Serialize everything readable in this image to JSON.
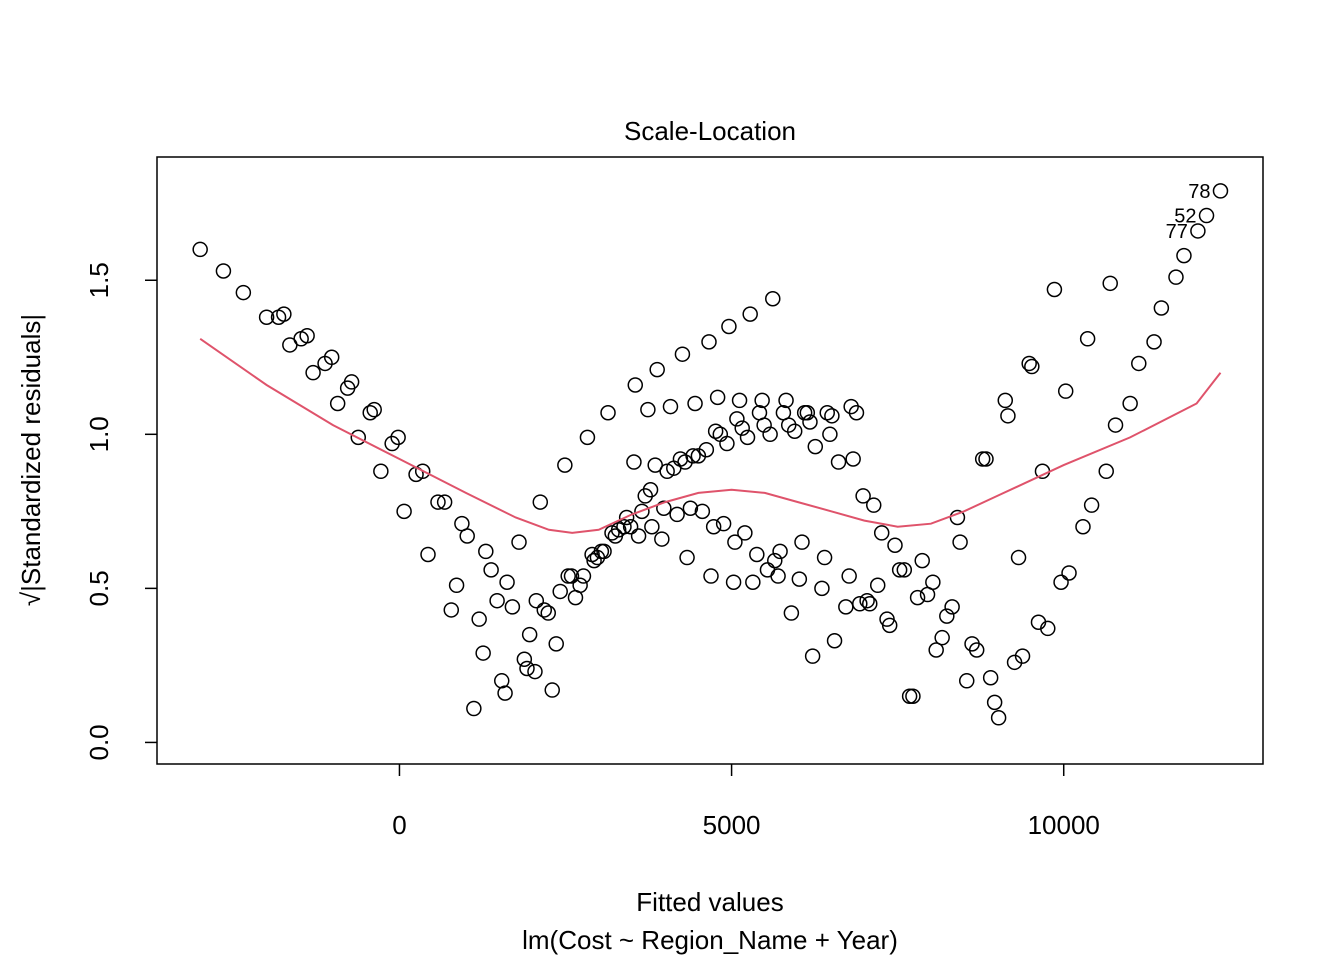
{
  "chart_data": {
    "type": "scatter",
    "title": "Scale-Location",
    "xlabel": "Fitted values",
    "subtitle": "lm(Cost ~ Region_Name + Year)",
    "ylabel": "√|Standardized residuals|",
    "xlim": [
      -3650,
      13000
    ],
    "ylim": [
      -0.07,
      1.9
    ],
    "x_ticks": [
      0,
      5000,
      10000
    ],
    "y_ticks": [
      0.0,
      0.5,
      1.0,
      1.5
    ],
    "x_tick_labels": [
      "0",
      "5000",
      "10000"
    ],
    "y_tick_labels": [
      "0.0",
      "0.5",
      "1.0",
      "1.5"
    ],
    "grid": false,
    "legend": "none",
    "point_color": "#000000",
    "smooth_color": "#DF536B",
    "points": [
      [
        -3000,
        1.6
      ],
      [
        -2650,
        1.53
      ],
      [
        -2350,
        1.46
      ],
      [
        -2000,
        1.38
      ],
      [
        -1820,
        1.38
      ],
      [
        -1740,
        1.39
      ],
      [
        -1650,
        1.29
      ],
      [
        -1480,
        1.31
      ],
      [
        -1390,
        1.32
      ],
      [
        -1300,
        1.2
      ],
      [
        -1120,
        1.23
      ],
      [
        -1020,
        1.25
      ],
      [
        -930,
        1.1
      ],
      [
        -780,
        1.15
      ],
      [
        -720,
        1.17
      ],
      [
        -620,
        0.99
      ],
      [
        -440,
        1.07
      ],
      [
        -380,
        1.08
      ],
      [
        -280,
        0.88
      ],
      [
        -110,
        0.97
      ],
      [
        -20,
        0.99
      ],
      [
        70,
        0.75
      ],
      [
        250,
        0.87
      ],
      [
        350,
        0.88
      ],
      [
        430,
        0.61
      ],
      [
        580,
        0.78
      ],
      [
        680,
        0.78
      ],
      [
        780,
        0.43
      ],
      [
        860,
        0.51
      ],
      [
        940,
        0.71
      ],
      [
        1020,
        0.67
      ],
      [
        1120,
        0.11
      ],
      [
        1200,
        0.4
      ],
      [
        1260,
        0.29
      ],
      [
        1300,
        0.62
      ],
      [
        1380,
        0.56
      ],
      [
        1470,
        0.46
      ],
      [
        1540,
        0.2
      ],
      [
        1590,
        0.16
      ],
      [
        1620,
        0.52
      ],
      [
        1700,
        0.44
      ],
      [
        1800,
        0.65
      ],
      [
        1880,
        0.27
      ],
      [
        1920,
        0.24
      ],
      [
        1960,
        0.35
      ],
      [
        2040,
        0.23
      ],
      [
        2060,
        0.46
      ],
      [
        2120,
        0.78
      ],
      [
        2180,
        0.43
      ],
      [
        2240,
        0.42
      ],
      [
        2300,
        0.17
      ],
      [
        2360,
        0.32
      ],
      [
        2420,
        0.49
      ],
      [
        2490,
        0.9
      ],
      [
        2540,
        0.54
      ],
      [
        2590,
        0.54
      ],
      [
        2650,
        0.47
      ],
      [
        2720,
        0.51
      ],
      [
        2770,
        0.54
      ],
      [
        2830,
        0.99
      ],
      [
        2900,
        0.61
      ],
      [
        2930,
        0.59
      ],
      [
        2980,
        0.6
      ],
      [
        3040,
        0.62
      ],
      [
        3080,
        0.62
      ],
      [
        3140,
        1.07
      ],
      [
        3200,
        0.68
      ],
      [
        3250,
        0.67
      ],
      [
        3300,
        0.69
      ],
      [
        3380,
        0.7
      ],
      [
        3420,
        0.73
      ],
      [
        3480,
        0.7
      ],
      [
        3530,
        0.91
      ],
      [
        3550,
        1.16
      ],
      [
        3600,
        0.67
      ],
      [
        3650,
        0.75
      ],
      [
        3700,
        0.8
      ],
      [
        3740,
        1.08
      ],
      [
        3780,
        0.82
      ],
      [
        3800,
        0.7
      ],
      [
        3850,
        0.9
      ],
      [
        3880,
        1.21
      ],
      [
        3950,
        0.66
      ],
      [
        3980,
        0.76
      ],
      [
        4030,
        0.88
      ],
      [
        4080,
        1.09
      ],
      [
        4130,
        0.89
      ],
      [
        4180,
        0.74
      ],
      [
        4230,
        0.92
      ],
      [
        4260,
        1.26
      ],
      [
        4300,
        0.91
      ],
      [
        4330,
        0.6
      ],
      [
        4380,
        0.76
      ],
      [
        4420,
        0.93
      ],
      [
        4450,
        1.1
      ],
      [
        4500,
        0.93
      ],
      [
        4560,
        0.75
      ],
      [
        4620,
        0.95
      ],
      [
        4660,
        1.3
      ],
      [
        4690,
        0.54
      ],
      [
        4730,
        0.7
      ],
      [
        4760,
        1.01
      ],
      [
        4790,
        1.12
      ],
      [
        4830,
        1.0
      ],
      [
        4880,
        0.71
      ],
      [
        4930,
        0.97
      ],
      [
        4960,
        1.35
      ],
      [
        5030,
        0.52
      ],
      [
        5050,
        0.65
      ],
      [
        5080,
        1.05
      ],
      [
        5120,
        1.11
      ],
      [
        5160,
        1.02
      ],
      [
        5200,
        0.68
      ],
      [
        5240,
        0.99
      ],
      [
        5280,
        1.39
      ],
      [
        5320,
        0.52
      ],
      [
        5380,
        0.61
      ],
      [
        5420,
        1.07
      ],
      [
        5460,
        1.11
      ],
      [
        5490,
        1.03
      ],
      [
        5540,
        0.56
      ],
      [
        5580,
        1.0
      ],
      [
        5620,
        1.44
      ],
      [
        5650,
        0.59
      ],
      [
        5700,
        0.54
      ],
      [
        5730,
        0.62
      ],
      [
        5780,
        1.07
      ],
      [
        5820,
        1.11
      ],
      [
        5860,
        1.03
      ],
      [
        5900,
        0.42
      ],
      [
        5950,
        1.01
      ],
      [
        6020,
        0.53
      ],
      [
        6060,
        0.65
      ],
      [
        6100,
        1.07
      ],
      [
        6140,
        1.07
      ],
      [
        6180,
        1.04
      ],
      [
        6220,
        0.28
      ],
      [
        6260,
        0.96
      ],
      [
        6360,
        0.5
      ],
      [
        6400,
        0.6
      ],
      [
        6440,
        1.07
      ],
      [
        6480,
        1.0
      ],
      [
        6510,
        1.06
      ],
      [
        6550,
        0.33
      ],
      [
        6610,
        0.91
      ],
      [
        6720,
        0.44
      ],
      [
        6770,
        0.54
      ],
      [
        6800,
        1.09
      ],
      [
        6830,
        0.92
      ],
      [
        6880,
        1.07
      ],
      [
        6930,
        0.45
      ],
      [
        6980,
        0.8
      ],
      [
        7040,
        0.46
      ],
      [
        7080,
        0.45
      ],
      [
        7140,
        0.77
      ],
      [
        7200,
        0.51
      ],
      [
        7260,
        0.68
      ],
      [
        7340,
        0.4
      ],
      [
        7380,
        0.38
      ],
      [
        7460,
        0.64
      ],
      [
        7530,
        0.56
      ],
      [
        7600,
        0.56
      ],
      [
        7680,
        0.15
      ],
      [
        7730,
        0.15
      ],
      [
        7800,
        0.47
      ],
      [
        7870,
        0.59
      ],
      [
        7950,
        0.48
      ],
      [
        8030,
        0.52
      ],
      [
        8080,
        0.3
      ],
      [
        8170,
        0.34
      ],
      [
        8240,
        0.41
      ],
      [
        8320,
        0.44
      ],
      [
        8400,
        0.73
      ],
      [
        8440,
        0.65
      ],
      [
        8540,
        0.2
      ],
      [
        8620,
        0.32
      ],
      [
        8690,
        0.3
      ],
      [
        8780,
        0.92
      ],
      [
        8830,
        0.92
      ],
      [
        8900,
        0.21
      ],
      [
        8960,
        0.13
      ],
      [
        9020,
        0.08
      ],
      [
        9120,
        1.11
      ],
      [
        9160,
        1.06
      ],
      [
        9260,
        0.26
      ],
      [
        9320,
        0.6
      ],
      [
        9380,
        0.28
      ],
      [
        9480,
        1.23
      ],
      [
        9520,
        1.22
      ],
      [
        9620,
        0.39
      ],
      [
        9680,
        0.88
      ],
      [
        9760,
        0.37
      ],
      [
        9860,
        1.47
      ],
      [
        9960,
        0.52
      ],
      [
        10030,
        1.14
      ],
      [
        10080,
        0.55
      ],
      [
        10290,
        0.7
      ],
      [
        10360,
        1.31
      ],
      [
        10420,
        0.77
      ],
      [
        10640,
        0.88
      ],
      [
        10700,
        1.49
      ],
      [
        10780,
        1.03
      ],
      [
        11000,
        1.1
      ],
      [
        11130,
        1.23
      ],
      [
        11360,
        1.3
      ],
      [
        11470,
        1.41
      ],
      [
        11690,
        1.51
      ],
      [
        11810,
        1.58
      ],
      [
        12020,
        1.66
      ],
      [
        12150,
        1.71
      ],
      [
        12360,
        1.79
      ]
    ],
    "smooth": [
      [
        -3000,
        1.31
      ],
      [
        -2000,
        1.16
      ],
      [
        -1000,
        1.03
      ],
      [
        0,
        0.92
      ],
      [
        1000,
        0.81
      ],
      [
        1750,
        0.73
      ],
      [
        2250,
        0.69
      ],
      [
        2600,
        0.68
      ],
      [
        3000,
        0.69
      ],
      [
        3500,
        0.74
      ],
      [
        4000,
        0.78
      ],
      [
        4500,
        0.81
      ],
      [
        5000,
        0.82
      ],
      [
        5500,
        0.81
      ],
      [
        6000,
        0.78
      ],
      [
        6500,
        0.75
      ],
      [
        7000,
        0.72
      ],
      [
        7500,
        0.7
      ],
      [
        8000,
        0.71
      ],
      [
        8500,
        0.75
      ],
      [
        9000,
        0.8
      ],
      [
        10000,
        0.9
      ],
      [
        11000,
        0.99
      ],
      [
        12000,
        1.1
      ],
      [
        12360,
        1.2
      ]
    ],
    "annotations": [
      {
        "label": "78",
        "x": 12360,
        "y": 1.79
      },
      {
        "label": "52",
        "x": 12150,
        "y": 1.71
      },
      {
        "label": "77",
        "x": 12020,
        "y": 1.66
      }
    ]
  }
}
